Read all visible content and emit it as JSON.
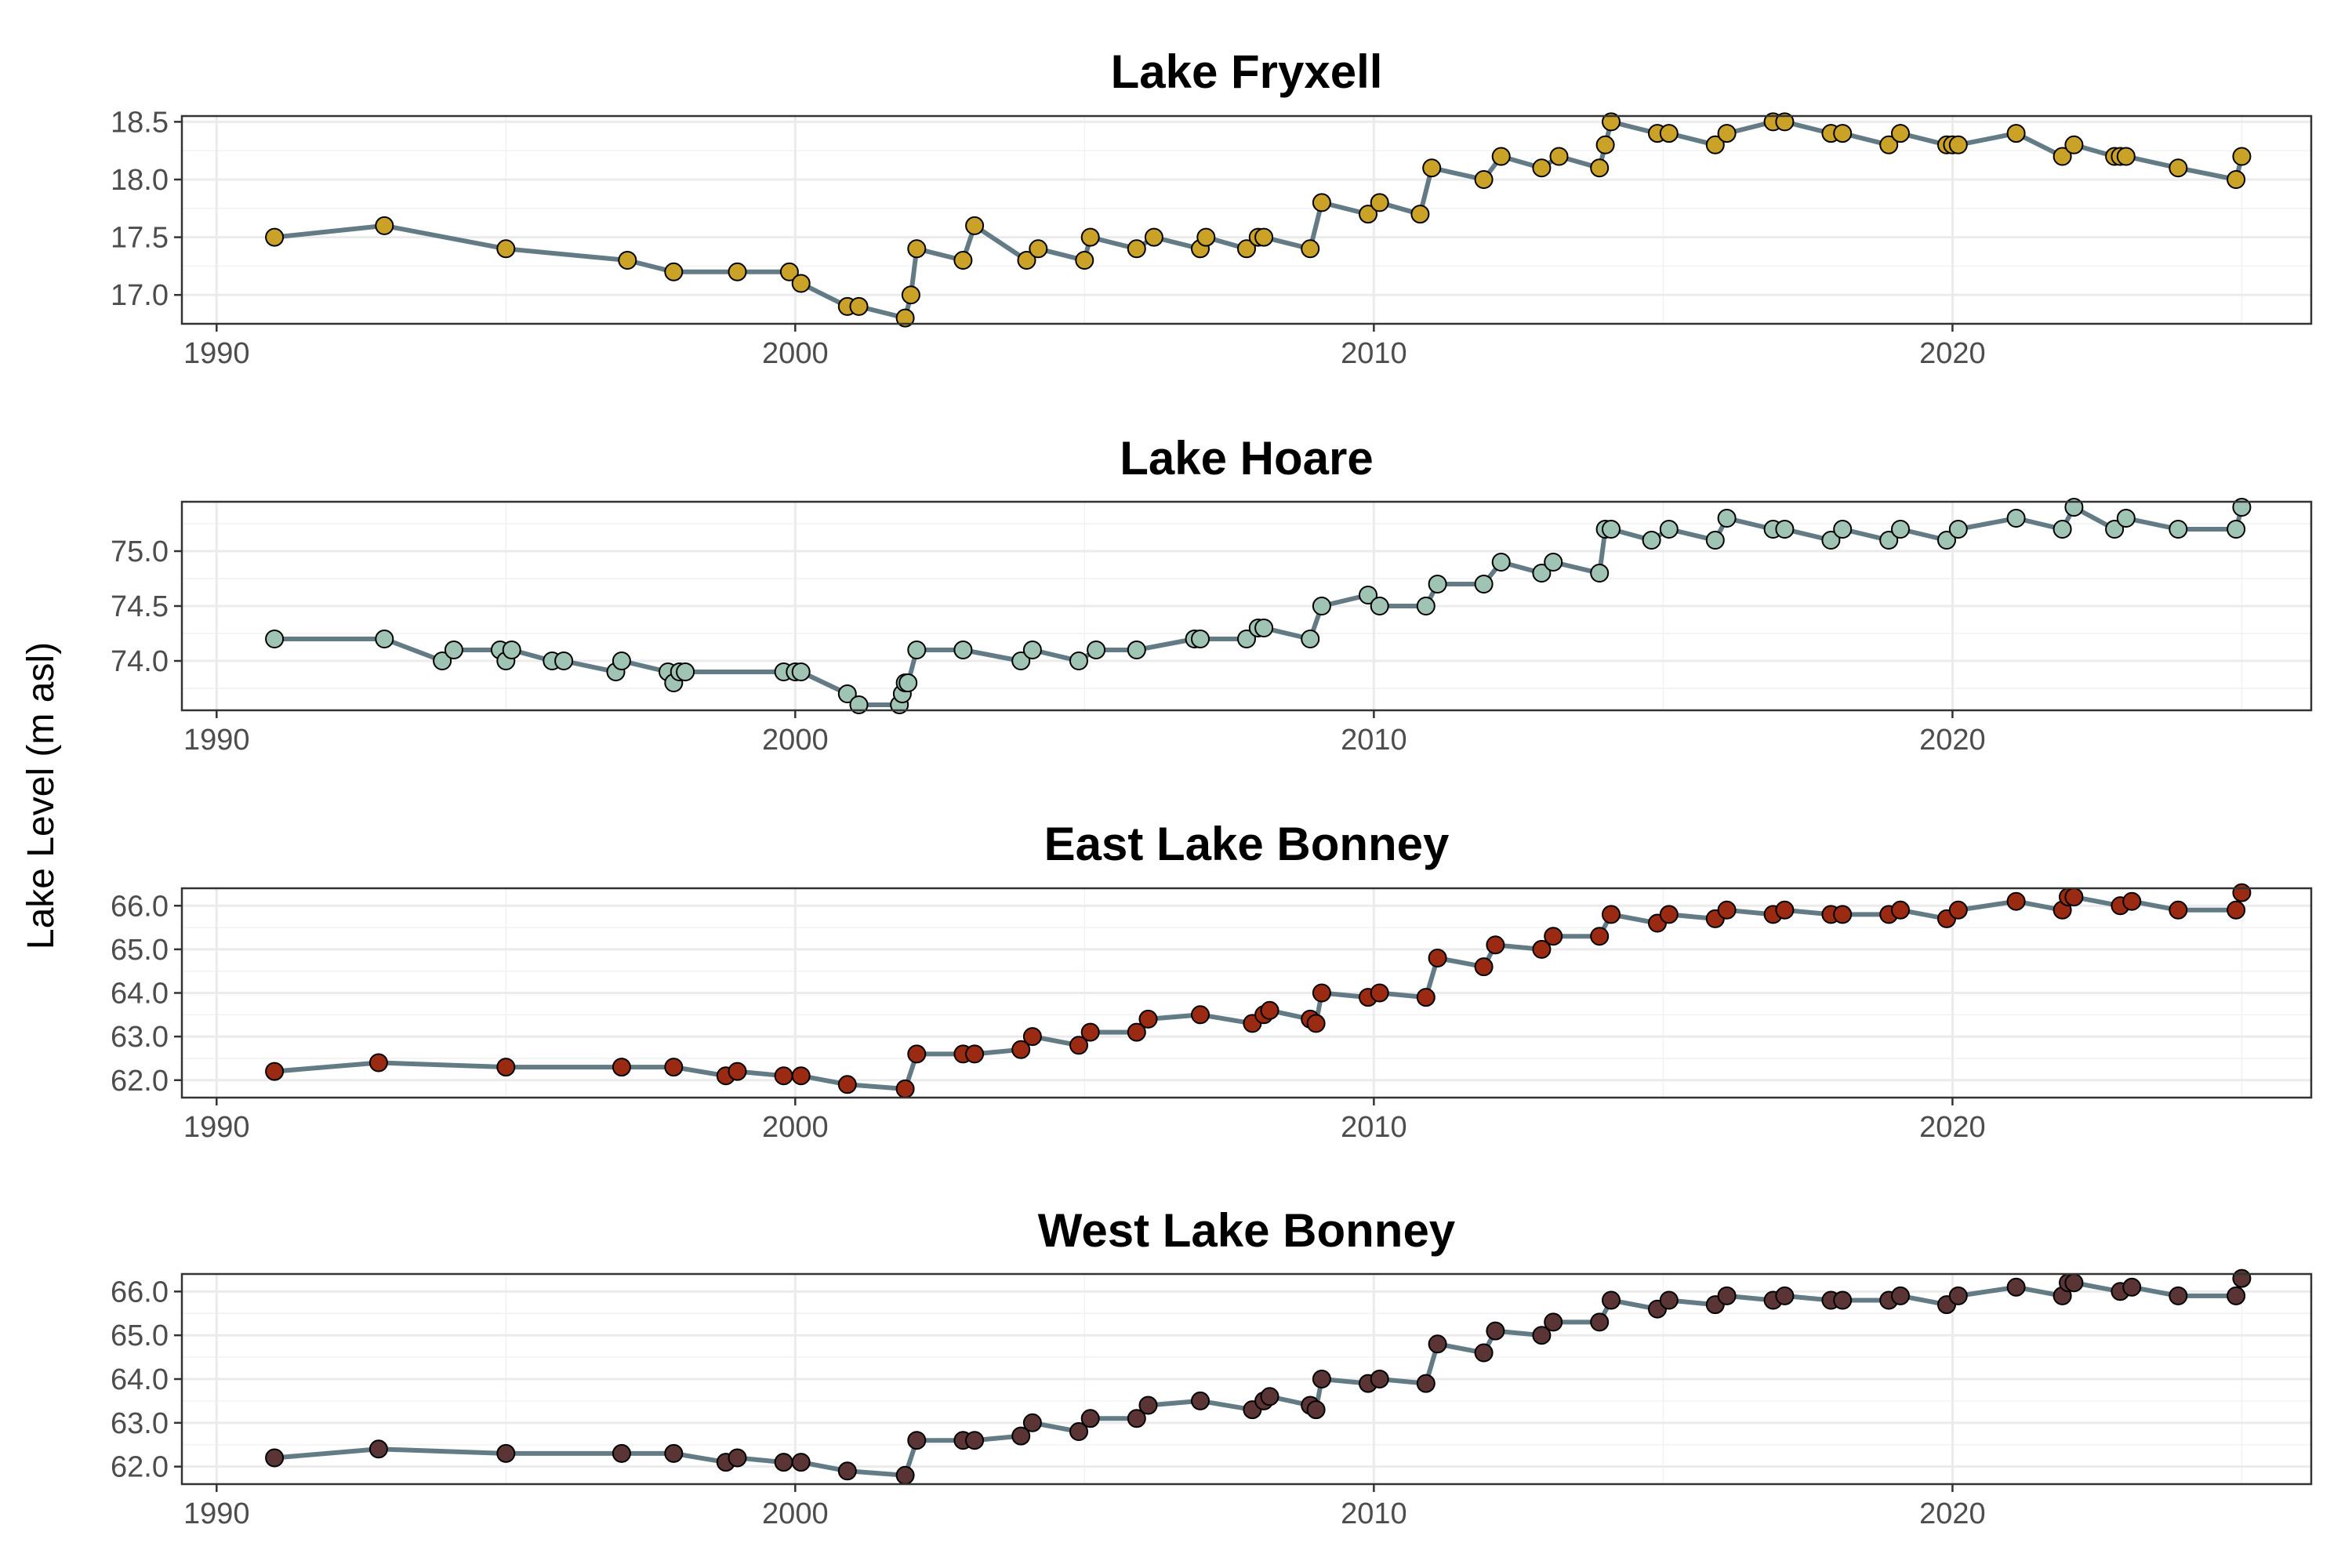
{
  "y_axis_title": "Lake Level (m asl)",
  "line_color": "#637b85",
  "chart_data": [
    {
      "type": "line",
      "title": "Lake Fryxell",
      "point_color": "#c9a227",
      "xlim": [
        1989.4,
        2026.2
      ],
      "ylim": [
        16.75,
        18.55
      ],
      "xticks": [
        1990,
        2000,
        2010,
        2020
      ],
      "yticks": [
        17.0,
        17.5,
        18.0,
        18.5
      ],
      "ytick_labels": [
        "17.0",
        "17.5",
        "18.0",
        "18.5"
      ],
      "grid": true,
      "x": [
        1991.0,
        1992.9,
        1995.0,
        1997.1,
        1997.9,
        1999.0,
        1999.9,
        2000.1,
        2000.9,
        2001.1,
        2001.9,
        2002.0,
        2002.1,
        2002.9,
        2003.1,
        2004.0,
        2004.2,
        2005.0,
        2005.1,
        2005.9,
        2006.2,
        2007.0,
        2007.1,
        2007.8,
        2008.0,
        2008.1,
        2008.9,
        2009.1,
        2009.9,
        2010.1,
        2010.8,
        2011.0,
        2011.9,
        2012.2,
        2012.9,
        2013.2,
        2013.9,
        2014.0,
        2014.1,
        2014.9,
        2015.1,
        2015.9,
        2016.1,
        2016.9,
        2017.1,
        2017.9,
        2018.1,
        2018.9,
        2019.1,
        2019.9,
        2020.0,
        2020.1,
        2021.1,
        2021.9,
        2022.1,
        2022.8,
        2022.9,
        2023.0,
        2023.9,
        2024.9,
        2025.0
      ],
      "y": [
        17.5,
        17.6,
        17.4,
        17.3,
        17.2,
        17.2,
        17.2,
        17.1,
        16.9,
        16.9,
        16.8,
        17.0,
        17.4,
        17.3,
        17.6,
        17.3,
        17.4,
        17.3,
        17.5,
        17.4,
        17.5,
        17.4,
        17.5,
        17.4,
        17.5,
        17.5,
        17.4,
        17.8,
        17.7,
        17.8,
        17.7,
        18.1,
        18.0,
        18.2,
        18.1,
        18.2,
        18.1,
        18.3,
        18.5,
        18.4,
        18.4,
        18.3,
        18.4,
        18.5,
        18.5,
        18.4,
        18.4,
        18.3,
        18.4,
        18.3,
        18.3,
        18.3,
        18.4,
        18.2,
        18.3,
        18.2,
        18.2,
        18.2,
        18.1,
        18.0,
        18.2
      ]
    },
    {
      "type": "line",
      "title": "Lake Hoare",
      "point_color": "#9fc4b4",
      "xlim": [
        1989.4,
        2026.2
      ],
      "ylim": [
        73.55,
        75.45
      ],
      "xticks": [
        1990,
        2000,
        2010,
        2020
      ],
      "yticks": [
        74.0,
        74.5,
        75.0
      ],
      "ytick_labels": [
        "74.0",
        "74.5",
        "75.0"
      ],
      "grid": true,
      "x": [
        1991.0,
        1992.9,
        1993.9,
        1994.1,
        1994.9,
        1995.0,
        1995.1,
        1995.8,
        1996.0,
        1996.9,
        1997.0,
        1997.8,
        1997.9,
        1998.0,
        1998.1,
        1999.8,
        2000.0,
        2000.1,
        2000.9,
        2001.1,
        2001.8,
        2001.85,
        2001.9,
        2001.95,
        2002.1,
        2002.9,
        2003.9,
        2004.1,
        2004.9,
        2005.2,
        2005.9,
        2006.9,
        2007.0,
        2007.8,
        2008.0,
        2008.1,
        2008.9,
        2009.1,
        2009.9,
        2010.1,
        2010.9,
        2011.1,
        2011.9,
        2012.2,
        2012.9,
        2013.1,
        2013.9,
        2014.0,
        2014.1,
        2014.8,
        2015.1,
        2015.9,
        2016.1,
        2016.9,
        2017.1,
        2017.9,
        2018.1,
        2018.9,
        2019.1,
        2019.9,
        2020.1,
        2021.1,
        2021.9,
        2022.1,
        2022.8,
        2023.0,
        2023.9,
        2024.9,
        2025.0
      ],
      "y": [
        74.2,
        74.2,
        74.0,
        74.1,
        74.1,
        74.0,
        74.1,
        74.0,
        74.0,
        73.9,
        74.0,
        73.9,
        73.8,
        73.9,
        73.9,
        73.9,
        73.9,
        73.9,
        73.7,
        73.6,
        73.6,
        73.7,
        73.8,
        73.8,
        74.1,
        74.1,
        74.0,
        74.1,
        74.0,
        74.1,
        74.1,
        74.2,
        74.2,
        74.2,
        74.3,
        74.3,
        74.2,
        74.5,
        74.6,
        74.5,
        74.5,
        74.7,
        74.7,
        74.9,
        74.8,
        74.9,
        74.8,
        75.2,
        75.2,
        75.1,
        75.2,
        75.1,
        75.3,
        75.2,
        75.2,
        75.1,
        75.2,
        75.1,
        75.2,
        75.1,
        75.2,
        75.3,
        75.2,
        75.4,
        75.2,
        75.3,
        75.2,
        75.2,
        75.4
      ]
    },
    {
      "type": "line",
      "title": "East Lake Bonney",
      "point_color": "#9b2a12",
      "xlim": [
        1989.4,
        2026.2
      ],
      "ylim": [
        61.6,
        66.4
      ],
      "xticks": [
        1990,
        2000,
        2010,
        2020
      ],
      "yticks": [
        62.0,
        63.0,
        64.0,
        65.0,
        66.0
      ],
      "ytick_labels": [
        "62.0",
        "63.0",
        "64.0",
        "65.0",
        "66.0"
      ],
      "grid": true,
      "x": [
        1991.0,
        1992.8,
        1995.0,
        1997.0,
        1997.9,
        1998.8,
        1999.0,
        1999.8,
        2000.1,
        2000.9,
        2001.9,
        2002.1,
        2002.9,
        2003.1,
        2003.9,
        2004.1,
        2004.9,
        2005.1,
        2005.9,
        2006.1,
        2007.0,
        2007.9,
        2008.1,
        2008.2,
        2008.9,
        2009.0,
        2009.1,
        2009.9,
        2010.1,
        2010.9,
        2011.1,
        2011.9,
        2012.1,
        2012.9,
        2013.1,
        2013.9,
        2014.1,
        2014.9,
        2015.1,
        2015.9,
        2016.1,
        2016.9,
        2017.1,
        2017.9,
        2018.1,
        2018.9,
        2019.1,
        2019.9,
        2020.1,
        2021.1,
        2021.9,
        2022.0,
        2022.1,
        2022.9,
        2023.1,
        2023.9,
        2024.9,
        2025.0
      ],
      "y": [
        62.2,
        62.4,
        62.3,
        62.3,
        62.3,
        62.1,
        62.2,
        62.1,
        62.1,
        61.9,
        61.8,
        62.6,
        62.6,
        62.6,
        62.7,
        63.0,
        62.8,
        63.1,
        63.1,
        63.4,
        63.5,
        63.3,
        63.5,
        63.6,
        63.4,
        63.3,
        64.0,
        63.9,
        64.0,
        63.9,
        64.8,
        64.6,
        65.1,
        65.0,
        65.3,
        65.3,
        65.8,
        65.6,
        65.8,
        65.7,
        65.9,
        65.8,
        65.9,
        65.8,
        65.8,
        65.8,
        65.9,
        65.7,
        65.9,
        66.1,
        65.9,
        66.2,
        66.2,
        66.0,
        66.1,
        65.9,
        65.9,
        66.3
      ]
    },
    {
      "type": "line",
      "title": "West Lake Bonney",
      "point_color": "#5b3535",
      "xlim": [
        1989.4,
        2026.2
      ],
      "ylim": [
        61.6,
        66.4
      ],
      "xticks": [
        1990,
        2000,
        2010,
        2020
      ],
      "yticks": [
        62.0,
        63.0,
        64.0,
        65.0,
        66.0
      ],
      "ytick_labels": [
        "62.0",
        "63.0",
        "64.0",
        "65.0",
        "66.0"
      ],
      "grid": true,
      "x": [
        1991.0,
        1992.8,
        1995.0,
        1997.0,
        1997.9,
        1998.8,
        1999.0,
        1999.8,
        2000.1,
        2000.9,
        2001.9,
        2002.1,
        2002.9,
        2003.1,
        2003.9,
        2004.1,
        2004.9,
        2005.1,
        2005.9,
        2006.1,
        2007.0,
        2007.9,
        2008.1,
        2008.2,
        2008.9,
        2009.0,
        2009.1,
        2009.9,
        2010.1,
        2010.9,
        2011.1,
        2011.9,
        2012.1,
        2012.9,
        2013.1,
        2013.9,
        2014.1,
        2014.9,
        2015.1,
        2015.9,
        2016.1,
        2016.9,
        2017.1,
        2017.9,
        2018.1,
        2018.9,
        2019.1,
        2019.9,
        2020.1,
        2021.1,
        2021.9,
        2022.0,
        2022.1,
        2022.9,
        2023.1,
        2023.9,
        2024.9,
        2025.0
      ],
      "y": [
        62.2,
        62.4,
        62.3,
        62.3,
        62.3,
        62.1,
        62.2,
        62.1,
        62.1,
        61.9,
        61.8,
        62.6,
        62.6,
        62.6,
        62.7,
        63.0,
        62.8,
        63.1,
        63.1,
        63.4,
        63.5,
        63.3,
        63.5,
        63.6,
        63.4,
        63.3,
        64.0,
        63.9,
        64.0,
        63.9,
        64.8,
        64.6,
        65.1,
        65.0,
        65.3,
        65.3,
        65.8,
        65.6,
        65.8,
        65.7,
        65.9,
        65.8,
        65.9,
        65.8,
        65.8,
        65.8,
        65.9,
        65.7,
        65.9,
        66.1,
        65.9,
        66.2,
        66.2,
        66.0,
        66.1,
        65.9,
        65.9,
        66.3
      ]
    }
  ]
}
